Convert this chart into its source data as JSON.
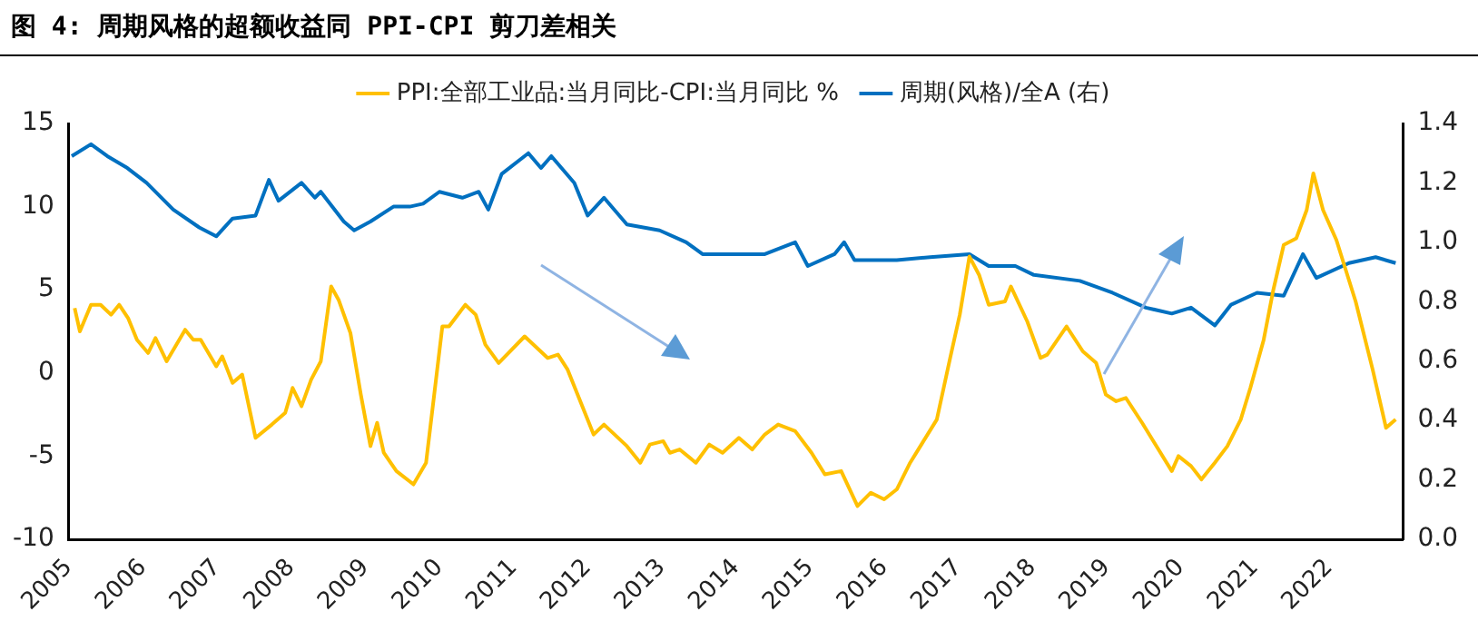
{
  "chart_data": {
    "type": "line",
    "title": "图 4: 周期风格的超额收益同 PPI-CPI 剪刀差相关",
    "xlim": [
      2005,
      2023
    ],
    "xticks": [
      2005,
      2006,
      2007,
      2008,
      2009,
      2010,
      2011,
      2012,
      2013,
      2014,
      2015,
      2016,
      2017,
      2018,
      2019,
      2020,
      2021,
      2022
    ],
    "ylim": [
      -10,
      15
    ],
    "yticks": [
      -10,
      -5,
      0,
      5,
      10,
      15
    ],
    "y2label": null,
    "y2lim": [
      0,
      1.4
    ],
    "y2ticks": [
      {
        "value": 0,
        "label": "0.0"
      },
      0.2,
      0.4,
      0.6,
      0.8,
      {
        "value": 1,
        "label": "1.0"
      },
      1.2,
      1.4
    ],
    "legend": "top",
    "grid": false,
    "series": [
      {
        "name": "PPI:全部工业品:当月同比-CPI:当月同比 %",
        "color": "#ffc000",
        "x": [
          2005.08,
          2005.15,
          2005.3,
          2005.43,
          2005.57,
          2005.68,
          2005.8,
          2005.92,
          2006.07,
          2006.17,
          2006.32,
          2006.57,
          2006.68,
          2006.78,
          2006.99,
          2007.07,
          2007.21,
          2007.34,
          2007.52,
          2007.74,
          2007.92,
          2008.02,
          2008.14,
          2008.27,
          2008.4,
          2008.54,
          2008.64,
          2008.8,
          2008.94,
          2009.07,
          2009.16,
          2009.25,
          2009.42,
          2009.65,
          2009.82,
          2010.04,
          2010.13,
          2010.35,
          2010.49,
          2010.62,
          2010.8,
          2011.15,
          2011.46,
          2011.6,
          2011.73,
          2012.08,
          2012.22,
          2012.53,
          2012.71,
          2012.84,
          2013.02,
          2013.11,
          2013.24,
          2013.46,
          2013.64,
          2013.82,
          2014.04,
          2014.22,
          2014.39,
          2014.57,
          2014.8,
          2015.02,
          2015.2,
          2015.42,
          2015.64,
          2015.82,
          2016.0,
          2016.17,
          2016.35,
          2016.53,
          2016.71,
          2016.89,
          2017.02,
          2017.15,
          2017.28,
          2017.41,
          2017.63,
          2017.71,
          2017.93,
          2018.11,
          2018.2,
          2018.46,
          2018.68,
          2018.86,
          2018.99,
          2019.13,
          2019.26,
          2019.48,
          2019.7,
          2019.88,
          2019.97,
          2020.14,
          2020.28,
          2020.46,
          2020.63,
          2020.81,
          2020.94,
          2021.12,
          2021.25,
          2021.39,
          2021.56,
          2021.7,
          2021.79,
          2021.92,
          2022.1,
          2022.36,
          2022.59,
          2022.77,
          2022.9
        ],
        "values": [
          3.9,
          2.5,
          4.1,
          4.1,
          3.5,
          4.1,
          3.3,
          2.0,
          1.2,
          2.1,
          0.7,
          2.6,
          2.0,
          2.0,
          0.4,
          1.0,
          -0.6,
          -0.1,
          -3.9,
          -3.1,
          -2.4,
          -0.9,
          -2.0,
          -0.4,
          0.7,
          5.2,
          4.4,
          2.4,
          -1.3,
          -4.4,
          -3.0,
          -4.8,
          -5.9,
          -6.7,
          -5.4,
          2.8,
          2.8,
          4.1,
          3.5,
          1.7,
          0.6,
          2.2,
          0.9,
          1.1,
          0.2,
          -3.7,
          -3.1,
          -4.4,
          -5.4,
          -4.3,
          -4.1,
          -4.8,
          -4.6,
          -5.4,
          -4.3,
          -4.8,
          -3.9,
          -4.6,
          -3.7,
          -3.1,
          -3.5,
          -4.8,
          -6.1,
          -5.9,
          -8.0,
          -7.2,
          -7.6,
          -7.0,
          -5.4,
          -4.1,
          -2.8,
          0.9,
          3.5,
          7.0,
          5.9,
          4.1,
          4.3,
          5.2,
          3.1,
          0.9,
          1.1,
          2.8,
          1.3,
          0.6,
          -1.3,
          -1.7,
          -1.5,
          -3.0,
          -4.6,
          -5.9,
          -5.0,
          -5.6,
          -6.4,
          -5.4,
          -4.4,
          -2.8,
          -0.9,
          2.0,
          5.0,
          7.7,
          8.1,
          9.8,
          12.0,
          9.8,
          8.0,
          4.3,
          0.2,
          -3.3,
          -2.8
        ]
      },
      {
        "name": "周期(风格)/全A (右)",
        "color": "#0070c0",
        "axis": "y2",
        "x": [
          2005.04,
          2005.3,
          2005.52,
          2005.79,
          2006.05,
          2006.41,
          2006.76,
          2006.99,
          2007.21,
          2007.52,
          2007.7,
          2007.83,
          2008.14,
          2008.32,
          2008.4,
          2008.71,
          2008.85,
          2009.07,
          2009.38,
          2009.6,
          2009.78,
          2010.0,
          2010.31,
          2010.53,
          2010.66,
          2010.84,
          2011.2,
          2011.37,
          2011.51,
          2011.82,
          2012.0,
          2012.22,
          2012.53,
          2012.97,
          2013.33,
          2013.55,
          2013.95,
          2014.39,
          2014.8,
          2014.97,
          2015.33,
          2015.46,
          2015.6,
          2016.17,
          2016.62,
          2017.15,
          2017.41,
          2017.77,
          2018.02,
          2018.64,
          2019.08,
          2019.53,
          2019.88,
          2020.14,
          2020.46,
          2020.68,
          2021.03,
          2021.39,
          2021.65,
          2021.83,
          2022.27,
          2022.63,
          2022.9
        ],
        "values": [
          1.29,
          1.33,
          1.29,
          1.25,
          1.2,
          1.11,
          1.05,
          1.02,
          1.08,
          1.09,
          1.21,
          1.14,
          1.2,
          1.15,
          1.17,
          1.07,
          1.04,
          1.07,
          1.12,
          1.12,
          1.13,
          1.17,
          1.15,
          1.17,
          1.11,
          1.23,
          1.3,
          1.25,
          1.29,
          1.2,
          1.09,
          1.15,
          1.06,
          1.04,
          1.0,
          0.96,
          0.96,
          0.96,
          1.0,
          0.92,
          0.96,
          1.0,
          0.94,
          0.94,
          0.95,
          0.96,
          0.92,
          0.92,
          0.89,
          0.87,
          0.83,
          0.78,
          0.76,
          0.78,
          0.72,
          0.79,
          0.83,
          0.82,
          0.96,
          0.88,
          0.93,
          0.95,
          0.93
        ]
      }
    ]
  }
}
